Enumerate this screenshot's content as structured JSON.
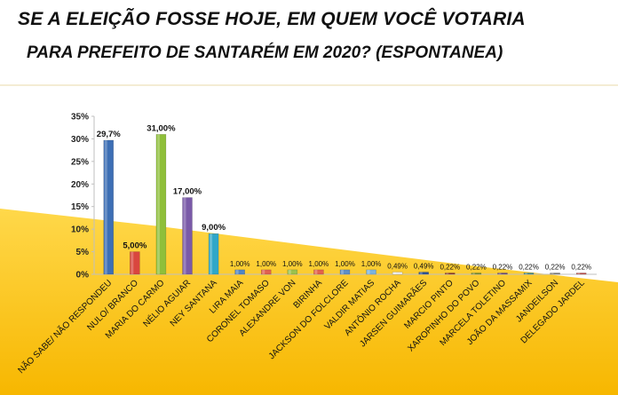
{
  "header": {
    "title_line1": "SE A ELEIÇÃO FOSSE HOJE, EM QUEM VOCÊ VOTARIA",
    "title_line2": "PARA PREFEITO DE SANTARÉM EM  2020? (ESPONTANEA)"
  },
  "chart_data": {
    "type": "bar",
    "title": "",
    "xlabel": "",
    "ylabel": "",
    "ylim": [
      0,
      35
    ],
    "yticks": [
      "0%",
      "5%",
      "10%",
      "15%",
      "20%",
      "25%",
      "30%",
      "35%"
    ],
    "grid": false,
    "legend": "none",
    "categories": [
      "NÃO SABE/ NÃO RESPONDEU",
      "NULO/ BRANCO",
      "MARIA DO CARMO",
      "NÉLIO AGUIAR",
      "NEY SANTANA",
      "LIRA MAIA",
      "CORONEL TOMASO",
      "ALEXANDRE VON",
      "BIRINHA",
      "JACKSON DO FOLCLORE",
      "VALDIR MATIAS",
      "ANTÔNIO ROCHA",
      "JARSEN GUIMARÃES",
      "MARCIO PINTO",
      "XAROPINHO DO POVO",
      "MARCELA TOLETINO",
      "JOÃO DA MASSAMIX",
      "JANDEILSON",
      "DELEGADO JARDEL"
    ],
    "values": [
      29.7,
      5.0,
      31.0,
      17.0,
      9.0,
      1.0,
      1.0,
      1.0,
      1.0,
      1.0,
      1.0,
      0.49,
      0.49,
      0.22,
      0.22,
      0.22,
      0.22,
      0.22,
      0.22
    ],
    "data_labels": [
      "29,7%",
      "5,00%",
      "31,00%",
      "17,00%",
      "9,00%",
      "1,00%",
      "1,00%",
      "1,00%",
      "1,00%",
      "1,00%",
      "1,00%",
      "0,49%",
      "0,49%",
      "0,22%",
      "0,22%",
      "0,22%",
      "0,22%",
      "0,22%",
      "0,22%"
    ],
    "colors": [
      "#3d6fb5",
      "#d9463e",
      "#8fbf3a",
      "#7a5aa8",
      "#2fa7c9",
      "#4f86c6",
      "#e0614f",
      "#9bc24d",
      "#e2614d",
      "#5f8fc7",
      "#7ab3df",
      "#f0f0f0",
      "#2f5597",
      "#8d3a37",
      "#77933c",
      "#6b4d8c",
      "#3d8fa7",
      "#7f7f7f",
      "#c0504d"
    ]
  }
}
